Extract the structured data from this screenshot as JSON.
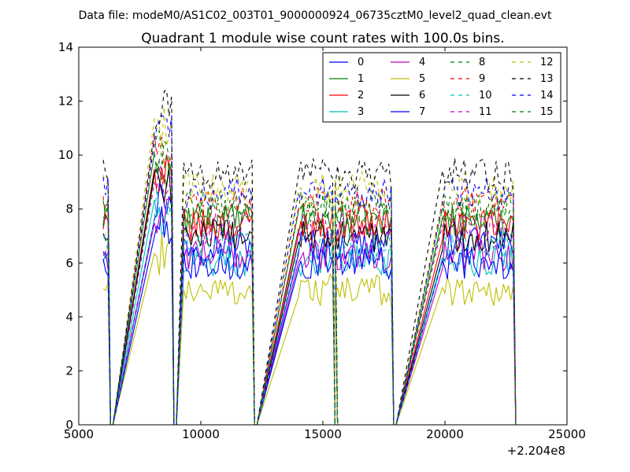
{
  "suptitle": "Data file: modeM0/AS1C02_003T01_9000000924_06735cztM0_level2_quad_clean.evt",
  "chart_data": {
    "type": "line",
    "title": "Quadrant 1 module wise count rates with 100.0s bins.",
    "xlabel": "",
    "ylabel": "",
    "x_offset_label": "+2.204e8",
    "xlim": [
      5000,
      25000
    ],
    "ylim": [
      0,
      14
    ],
    "xticks": [
      5000,
      10000,
      15000,
      20000,
      25000
    ],
    "xtick_labels": [
      "5000",
      "10000",
      "15000",
      "20000",
      "25000"
    ],
    "yticks": [
      0,
      2,
      4,
      6,
      8,
      10,
      12,
      14
    ],
    "ytick_labels": [
      "0",
      "2",
      "4",
      "6",
      "8",
      "10",
      "12",
      "14"
    ],
    "grid": false,
    "legend_placement": "top-right",
    "legend_ncol": 4,
    "segments": [
      {
        "start": 6000,
        "end": 6200
      },
      {
        "start": 8100,
        "end": 8800
      },
      {
        "start": 9300,
        "end": 12100
      },
      {
        "start": 14000,
        "end": 15400
      },
      {
        "start": 15500,
        "end": 17800
      },
      {
        "start": 19900,
        "end": 22800
      }
    ],
    "series": [
      {
        "name": "0",
        "color": "#0000ff",
        "dashed": false,
        "level": 6.7
      },
      {
        "name": "1",
        "color": "#008000",
        "dashed": false,
        "level": 7.6
      },
      {
        "name": "2",
        "color": "#ff0000",
        "dashed": false,
        "level": 7.4
      },
      {
        "name": "3",
        "color": "#00bfbf",
        "dashed": false,
        "level": 6.1
      },
      {
        "name": "4",
        "color": "#bf00bf",
        "dashed": false,
        "level": 6.3
      },
      {
        "name": "5",
        "color": "#bfbf00",
        "dashed": false,
        "level": 5.0
      },
      {
        "name": "6",
        "color": "#000000",
        "dashed": false,
        "level": 7.0
      },
      {
        "name": "7",
        "color": "#0000ff",
        "dashed": false,
        "level": 6.0
      },
      {
        "name": "8",
        "color": "#008000",
        "dashed": true,
        "level": 8.1
      },
      {
        "name": "9",
        "color": "#ff0000",
        "dashed": true,
        "level": 8.2
      },
      {
        "name": "10",
        "color": "#00bfbf",
        "dashed": true,
        "level": 6.6
      },
      {
        "name": "11",
        "color": "#bf00bf",
        "dashed": true,
        "level": 7.3
      },
      {
        "name": "12",
        "color": "#bfbf00",
        "dashed": true,
        "level": 8.8
      },
      {
        "name": "13",
        "color": "#000000",
        "dashed": true,
        "level": 9.3
      },
      {
        "name": "14",
        "color": "#0000ff",
        "dashed": true,
        "level": 8.6
      },
      {
        "name": "15",
        "color": "#008000",
        "dashed": true,
        "level": 7.9
      }
    ]
  }
}
